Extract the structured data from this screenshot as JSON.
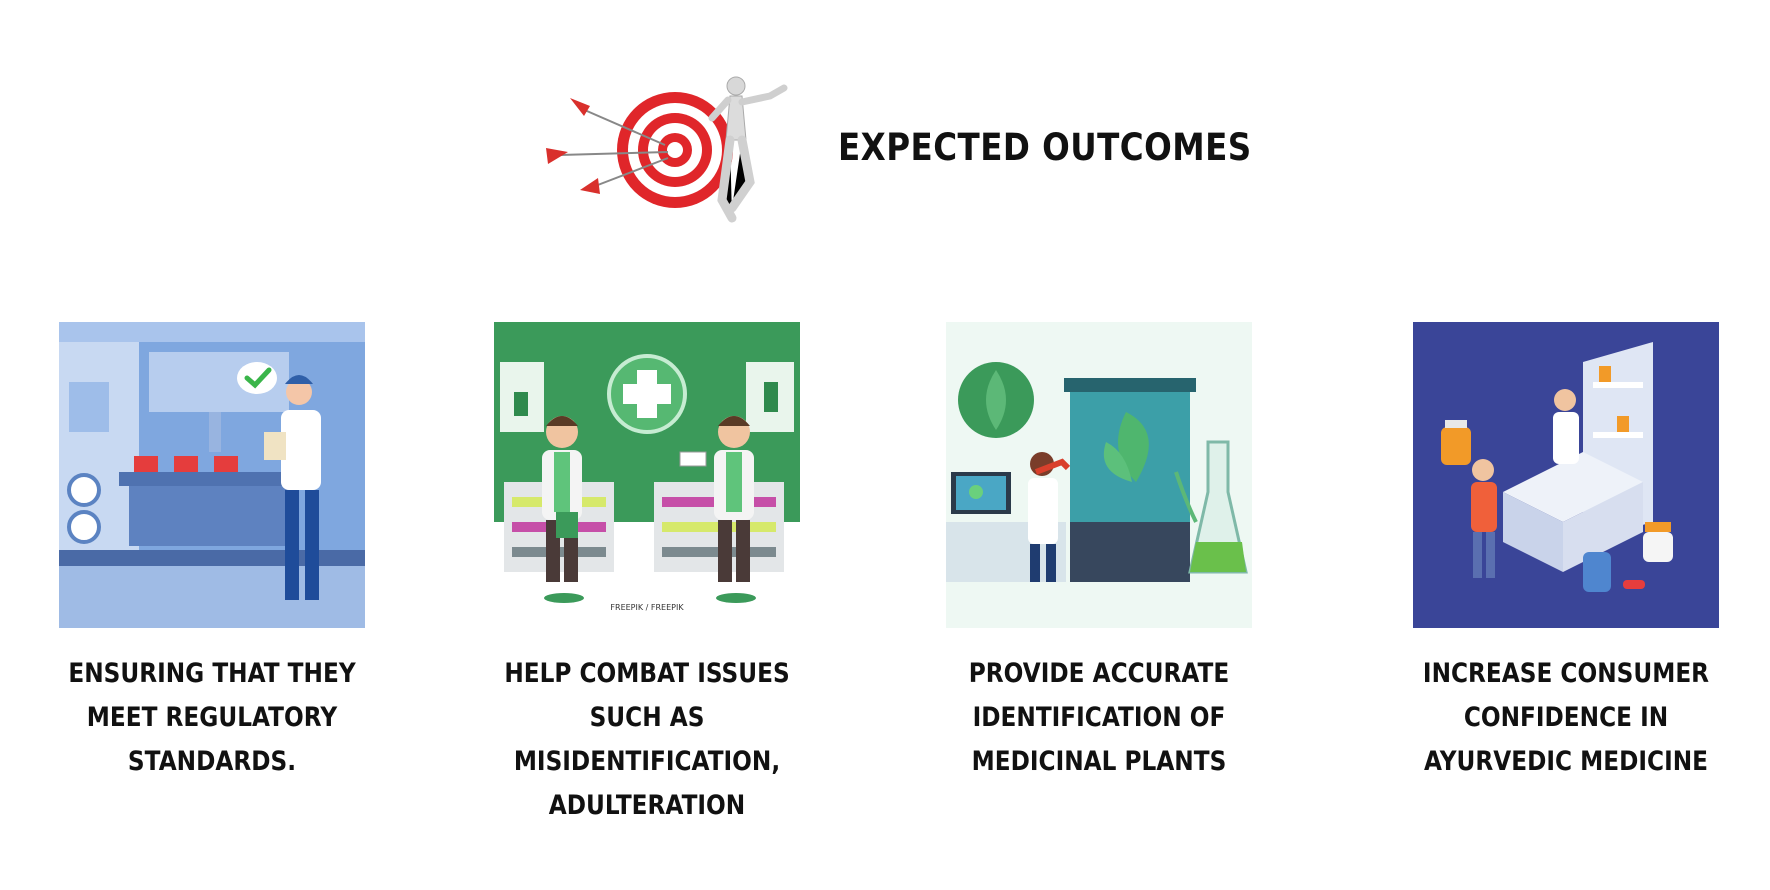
{
  "header": {
    "title": "EXPECTED OUTCOMES",
    "icon": "target-with-arrows-and-figure"
  },
  "outcomes": [
    {
      "icon": "quality-inspection-illustration",
      "lines": [
        "ENSURING THAT THEY",
        "MEET REGULATORY",
        "STANDARDS."
      ]
    },
    {
      "icon": "pharmacy-illustration",
      "image_caption": "FREEPIK / FREEPIK",
      "lines": [
        "HELP COMBAT ISSUES",
        "SUCH AS",
        "MISIDENTIFICATION,",
        "ADULTERATION"
      ]
    },
    {
      "icon": "plant-laboratory-illustration",
      "lines": [
        "PROVIDE ACCURATE",
        "IDENTIFICATION OF",
        "MEDICINAL PLANTS"
      ]
    },
    {
      "icon": "consumer-pharmacy-illustration",
      "lines": [
        "INCREASE CONSUMER",
        "CONFIDENCE IN",
        "AYURVEDIC MEDICINE"
      ]
    }
  ],
  "colors": {
    "target_red": "#e0262a",
    "blue_panel": "#7fa7df",
    "green_panel": "#3b9a5a",
    "lab_panel": "#eef8f3",
    "navy_panel": "#3a4598"
  }
}
